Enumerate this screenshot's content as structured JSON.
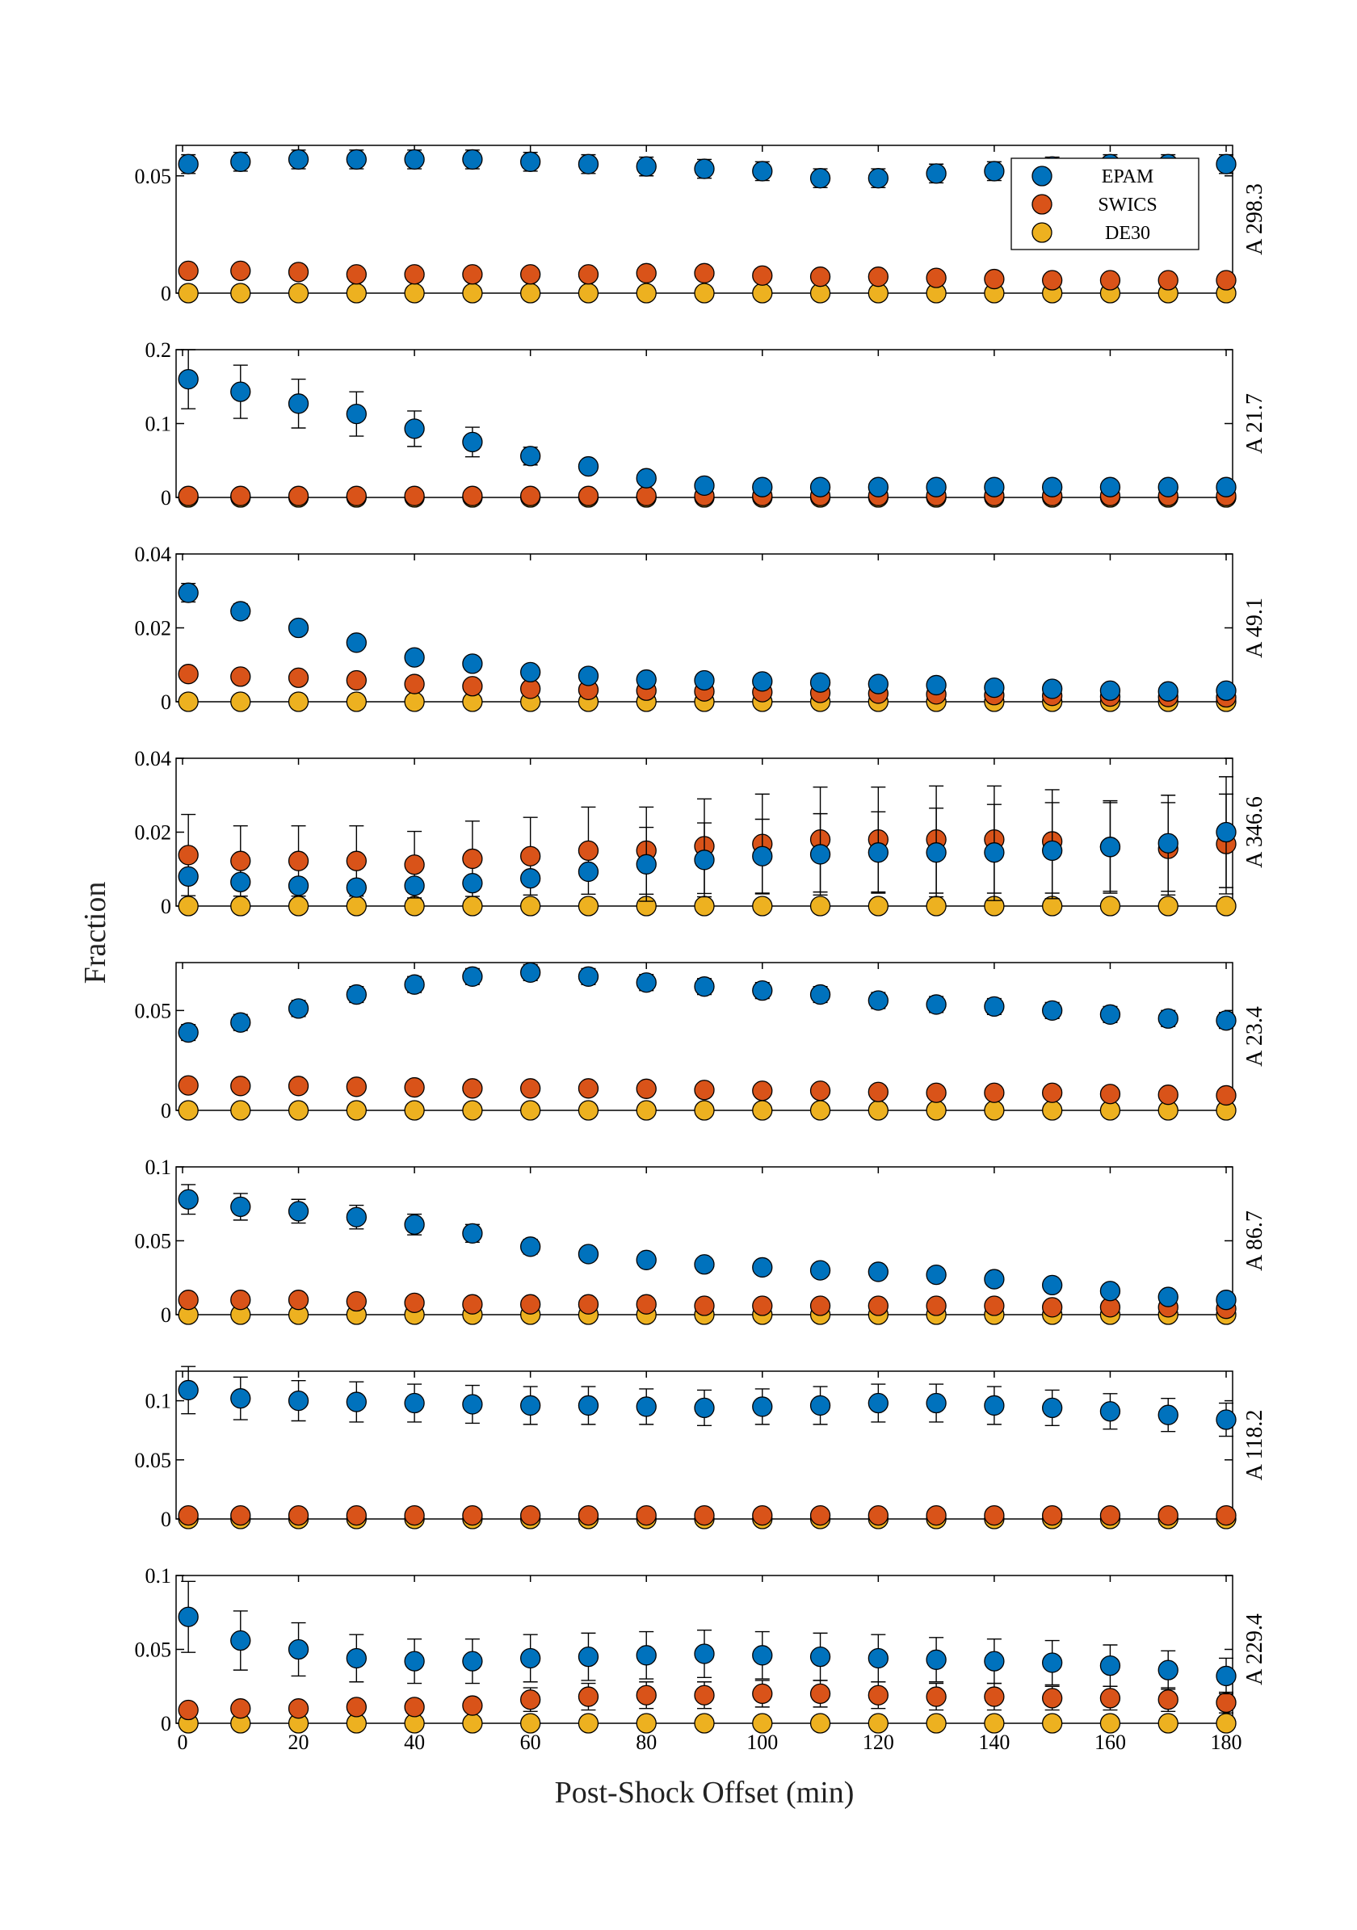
{
  "chart_data": {
    "type": "scatter",
    "xlabel": "Post-Shock Offset (min)",
    "ylabel": "Fraction",
    "xlim": [
      0,
      180
    ],
    "xticks": [
      0,
      20,
      40,
      60,
      80,
      100,
      120,
      140,
      160,
      180
    ],
    "x": [
      1,
      10,
      20,
      30,
      40,
      50,
      60,
      70,
      80,
      90,
      100,
      110,
      120,
      130,
      140,
      150,
      160,
      170,
      180
    ],
    "series_names": [
      "EPAM",
      "SWICS",
      "DE30"
    ],
    "colors": {
      "EPAM": "#0072bd",
      "SWICS": "#d95319",
      "DE30": "#edb120"
    },
    "legend": {
      "entries": [
        "EPAM",
        "SWICS",
        "DE30"
      ],
      "location": "top-right of first panel"
    },
    "panels": [
      {
        "label": "A 298.3",
        "ylim": [
          0,
          0.063
        ],
        "yticks": [
          0,
          0.05
        ],
        "yticklabels": [
          "0",
          "0.05"
        ],
        "series": [
          {
            "name": "EPAM",
            "values": [
              0.055,
              0.056,
              0.057,
              0.057,
              0.057,
              0.057,
              0.056,
              0.055,
              0.054,
              0.053,
              0.052,
              0.049,
              0.049,
              0.051,
              0.052,
              0.054,
              0.055,
              0.055,
              0.055
            ],
            "err": [
              0.004,
              0.004,
              0.004,
              0.004,
              0.004,
              0.004,
              0.004,
              0.004,
              0.004,
              0.004,
              0.004,
              0.004,
              0.004,
              0.004,
              0.004,
              0.004,
              0.004,
              0.004,
              0.004
            ]
          },
          {
            "name": "SWICS",
            "values": [
              0.0095,
              0.0095,
              0.009,
              0.008,
              0.008,
              0.008,
              0.008,
              0.008,
              0.0085,
              0.0085,
              0.0075,
              0.007,
              0.007,
              0.0065,
              0.006,
              0.0055,
              0.0055,
              0.0055,
              0.0055
            ],
            "err": null
          },
          {
            "name": "DE30",
            "values": [
              0,
              0,
              0,
              0,
              0,
              0,
              0,
              0,
              0,
              0,
              0,
              0,
              0,
              0,
              0,
              0,
              0,
              0,
              0
            ],
            "err": null
          }
        ]
      },
      {
        "label": "A 21.7",
        "ylim": [
          0,
          0.2
        ],
        "yticks": [
          0,
          0.1,
          0.2
        ],
        "yticklabels": [
          "0",
          "0.1",
          "0.2"
        ],
        "series": [
          {
            "name": "EPAM",
            "values": [
              0.16,
              0.143,
              0.127,
              0.113,
              0.093,
              0.075,
              0.056,
              0.042,
              0.026,
              0.016,
              0.014,
              0.014,
              0.014,
              0.014,
              0.014,
              0.014,
              0.014,
              0.014,
              0.014
            ],
            "err": [
              0.04,
              0.036,
              0.033,
              0.03,
              0.024,
              0.02,
              0.012,
              0.006,
              null,
              null,
              null,
              null,
              null,
              null,
              null,
              null,
              null,
              null,
              null
            ]
          },
          {
            "name": "SWICS",
            "values": [
              0.002,
              0.002,
              0.002,
              0.002,
              0.002,
              0.002,
              0.002,
              0.002,
              0.002,
              0.002,
              0.002,
              0.002,
              0.002,
              0.002,
              0.002,
              0.002,
              0.002,
              0.002,
              0.002
            ],
            "err": null
          },
          {
            "name": "DE30",
            "values": [
              0,
              0,
              0,
              0,
              0,
              0,
              0,
              0,
              0,
              0,
              0,
              0,
              0,
              0,
              0,
              0,
              0,
              0,
              0
            ],
            "err": null
          }
        ]
      },
      {
        "label": "A 49.1",
        "ylim": [
          0,
          0.04
        ],
        "yticks": [
          0,
          0.02,
          0.04
        ],
        "yticklabels": [
          "0",
          "0.02",
          "0.04"
        ],
        "series": [
          {
            "name": "EPAM",
            "values": [
              0.0295,
              0.0245,
              0.02,
              0.016,
              0.012,
              0.0103,
              0.008,
              0.007,
              0.006,
              0.0058,
              0.0055,
              0.0052,
              0.0048,
              0.0045,
              0.0038,
              0.0035,
              0.003,
              0.0028,
              0.003
            ],
            "err": [
              0.0025,
              0.002,
              0.0015,
              null,
              null,
              null,
              null,
              null,
              null,
              null,
              null,
              null,
              null,
              null,
              null,
              null,
              null,
              null,
              null
            ]
          },
          {
            "name": "SWICS",
            "values": [
              0.0075,
              0.0068,
              0.0065,
              0.0058,
              0.0048,
              0.0042,
              0.0035,
              0.0032,
              0.003,
              0.0028,
              0.0026,
              0.0024,
              0.0022,
              0.002,
              0.0018,
              0.0016,
              0.0014,
              0.0013,
              0.0012
            ],
            "err": null
          },
          {
            "name": "DE30",
            "values": [
              0,
              0,
              0,
              0,
              0,
              0,
              0,
              0,
              0,
              0,
              0,
              0,
              0,
              0,
              0,
              0,
              0,
              0,
              0
            ],
            "err": null
          }
        ]
      },
      {
        "label": "A 346.6",
        "ylim": [
          0,
          0.04
        ],
        "yticks": [
          0,
          0.02,
          0.04
        ],
        "yticklabels": [
          "0",
          "0.02",
          "0.04"
        ],
        "series": [
          {
            "name": "EPAM",
            "values": [
              0.008,
              0.0065,
              0.0055,
              0.005,
              0.0055,
              0.0062,
              0.0075,
              0.0093,
              0.0113,
              0.0125,
              0.0135,
              0.014,
              0.0145,
              0.0145,
              0.0145,
              0.015,
              0.016,
              0.017,
              0.02
            ],
            "err": [
              null,
              null,
              null,
              null,
              null,
              null,
              null,
              null,
              0.01,
              0.01,
              0.01,
              0.011,
              0.011,
              0.012,
              0.013,
              0.013,
              0.012,
              0.013,
              0.015
            ]
          },
          {
            "name": "SWICS",
            "values": [
              0.0138,
              0.0122,
              0.0122,
              0.0122,
              0.0112,
              0.0128,
              0.0135,
              0.015,
              0.015,
              0.0162,
              0.0168,
              0.018,
              0.018,
              0.018,
              0.018,
              0.0175,
              0.016,
              0.0155,
              0.0168
            ],
            "err": [
              0.011,
              0.0095,
              0.0095,
              0.0095,
              0.009,
              0.0102,
              0.0105,
              0.0118,
              0.0118,
              0.0128,
              0.0135,
              0.0142,
              0.0142,
              0.0145,
              0.0145,
              0.014,
              0.0125,
              0.0125,
              0.0135
            ]
          },
          {
            "name": "DE30",
            "values": [
              0,
              0,
              0,
              0,
              0,
              0,
              0,
              0,
              0,
              0,
              0,
              0,
              0,
              0,
              0,
              0,
              0,
              0,
              0
            ],
            "err": null
          }
        ]
      },
      {
        "label": "A 23.4",
        "ylim": [
          0,
          0.074
        ],
        "yticks": [
          0,
          0.05
        ],
        "yticklabels": [
          "0",
          "0.05"
        ],
        "series": [
          {
            "name": "EPAM",
            "values": [
              0.039,
              0.044,
              0.051,
              0.058,
              0.063,
              0.067,
              0.069,
              0.067,
              0.064,
              0.062,
              0.06,
              0.058,
              0.055,
              0.053,
              0.052,
              0.05,
              0.048,
              0.046,
              0.045
            ],
            "err": [
              0.004,
              0.004,
              0.004,
              0.004,
              0.004,
              0.004,
              0.004,
              0.004,
              0.004,
              0.004,
              0.004,
              0.004,
              0.004,
              0.004,
              0.004,
              0.004,
              0.004,
              0.004,
              0.004
            ]
          },
          {
            "name": "SWICS",
            "values": [
              0.0125,
              0.0122,
              0.0122,
              0.0118,
              0.0115,
              0.011,
              0.011,
              0.011,
              0.0108,
              0.0102,
              0.0098,
              0.0098,
              0.0092,
              0.0088,
              0.0088,
              0.0088,
              0.0082,
              0.0078,
              0.0075
            ],
            "err": null
          },
          {
            "name": "DE30",
            "values": [
              0,
              0,
              0,
              0,
              0,
              0,
              0,
              0,
              0,
              0,
              0,
              0,
              0,
              0,
              0,
              0,
              0,
              0,
              0
            ],
            "err": null
          }
        ]
      },
      {
        "label": "A 86.7",
        "ylim": [
          0,
          0.1
        ],
        "yticks": [
          0,
          0.05,
          0.1
        ],
        "yticklabels": [
          "0",
          "0.05",
          "0.1"
        ],
        "series": [
          {
            "name": "EPAM",
            "values": [
              0.078,
              0.073,
              0.07,
              0.066,
              0.061,
              0.055,
              0.046,
              0.041,
              0.037,
              0.034,
              0.032,
              0.03,
              0.029,
              0.027,
              0.024,
              0.02,
              0.016,
              0.012,
              0.01
            ],
            "err": [
              0.01,
              0.009,
              0.008,
              0.008,
              0.007,
              0.006,
              0.005,
              0.004,
              null,
              null,
              null,
              null,
              null,
              null,
              null,
              null,
              null,
              null,
              null
            ]
          },
          {
            "name": "SWICS",
            "values": [
              0.01,
              0.01,
              0.01,
              0.009,
              0.008,
              0.007,
              0.007,
              0.007,
              0.007,
              0.006,
              0.006,
              0.006,
              0.006,
              0.006,
              0.006,
              0.005,
              0.005,
              0.005,
              0.004
            ],
            "err": null
          },
          {
            "name": "DE30",
            "values": [
              0,
              0,
              0,
              0,
              0,
              0,
              0,
              0,
              0,
              0,
              0,
              0,
              0,
              0,
              0,
              0,
              0,
              0,
              0
            ],
            "err": null
          }
        ]
      },
      {
        "label": "A 118.2",
        "ylim": [
          0,
          0.125
        ],
        "yticks": [
          0,
          0.05,
          0.1
        ],
        "yticklabels": [
          "0",
          "0.05",
          "0.1"
        ],
        "series": [
          {
            "name": "EPAM",
            "values": [
              0.109,
              0.102,
              0.1,
              0.099,
              0.098,
              0.097,
              0.096,
              0.096,
              0.095,
              0.094,
              0.095,
              0.096,
              0.098,
              0.098,
              0.096,
              0.094,
              0.091,
              0.088,
              0.084
            ],
            "err": [
              0.02,
              0.018,
              0.017,
              0.017,
              0.016,
              0.016,
              0.016,
              0.016,
              0.015,
              0.015,
              0.015,
              0.016,
              0.016,
              0.016,
              0.016,
              0.015,
              0.015,
              0.014,
              0.014
            ]
          },
          {
            "name": "SWICS",
            "values": [
              0.003,
              0.003,
              0.003,
              0.003,
              0.003,
              0.003,
              0.003,
              0.003,
              0.003,
              0.003,
              0.003,
              0.003,
              0.003,
              0.003,
              0.003,
              0.003,
              0.003,
              0.003,
              0.003
            ],
            "err": null
          },
          {
            "name": "DE30",
            "values": [
              0,
              0,
              0,
              0,
              0,
              0,
              0,
              0,
              0,
              0,
              0,
              0,
              0,
              0,
              0,
              0,
              0,
              0,
              0
            ],
            "err": null
          }
        ]
      },
      {
        "label": "A 229.4",
        "ylim": [
          0,
          0.1
        ],
        "yticks": [
          0,
          0.05,
          0.1
        ],
        "yticklabels": [
          "0",
          "0.05",
          "0.1"
        ],
        "series": [
          {
            "name": "EPAM",
            "values": [
              0.072,
              0.056,
              0.05,
              0.044,
              0.042,
              0.042,
              0.044,
              0.045,
              0.046,
              0.047,
              0.046,
              0.045,
              0.044,
              0.043,
              0.042,
              0.041,
              0.039,
              0.036,
              0.032
            ],
            "err": [
              0.024,
              0.02,
              0.018,
              0.016,
              0.015,
              0.015,
              0.016,
              0.016,
              0.016,
              0.016,
              0.016,
              0.016,
              0.016,
              0.015,
              0.015,
              0.015,
              0.014,
              0.013,
              0.012
            ]
          },
          {
            "name": "SWICS",
            "values": [
              0.009,
              0.01,
              0.01,
              0.011,
              0.011,
              0.012,
              0.016,
              0.018,
              0.019,
              0.019,
              0.02,
              0.02,
              0.019,
              0.018,
              0.018,
              0.017,
              0.017,
              0.016,
              0.014
            ],
            "err": [
              null,
              null,
              null,
              null,
              null,
              null,
              0.008,
              0.009,
              0.009,
              0.009,
              0.009,
              0.009,
              0.009,
              0.009,
              0.009,
              0.008,
              0.008,
              0.008,
              0.007
            ]
          },
          {
            "name": "DE30",
            "values": [
              0,
              0,
              0,
              0,
              0,
              0,
              0,
              0,
              0,
              0,
              0,
              0,
              0,
              0,
              0,
              0,
              0,
              0,
              0
            ],
            "err": null
          }
        ]
      }
    ]
  }
}
